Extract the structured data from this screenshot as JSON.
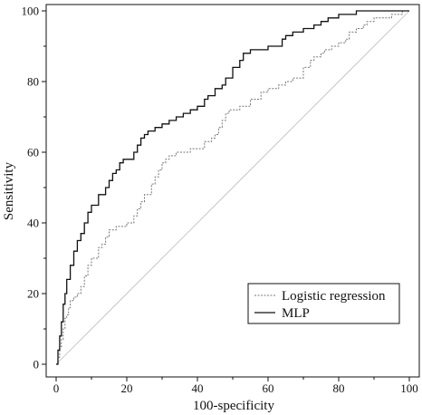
{
  "chart_data": {
    "type": "line",
    "title": "",
    "xlabel": "100-specificity",
    "ylabel": "Sensitivity",
    "xlim": [
      0,
      100
    ],
    "ylim": [
      0,
      100
    ],
    "xticks": [
      "0",
      "20",
      "40",
      "60",
      "80",
      "100"
    ],
    "yticks": [
      "0",
      "20",
      "40",
      "60",
      "80",
      "100"
    ],
    "grid": false,
    "legend_position": "bottom-right",
    "series": [
      {
        "name": "Logistic regression",
        "style": "dashed",
        "color": "#777777",
        "x": [
          0,
          0.5,
          1,
          1.5,
          2,
          2.5,
          3,
          3.5,
          4,
          5,
          6,
          7,
          8,
          9,
          10,
          12,
          13,
          14,
          15,
          17,
          18,
          20,
          22,
          23,
          24,
          25,
          27,
          28,
          29,
          30,
          31,
          32,
          33,
          34,
          35,
          38,
          40,
          42,
          44,
          45,
          46,
          47,
          48,
          49,
          50,
          52,
          53,
          55,
          58,
          60,
          62,
          63,
          65,
          67,
          70,
          72,
          73,
          75,
          76,
          78,
          80,
          82,
          83,
          85,
          87,
          88,
          90,
          92,
          95,
          98,
          100
        ],
        "y": [
          0,
          2,
          5,
          7,
          10,
          13,
          14,
          16,
          18,
          19,
          20,
          22,
          25,
          28,
          30,
          33,
          34,
          36,
          38,
          39,
          39,
          40,
          42,
          44,
          46,
          48,
          51,
          53,
          55,
          57,
          58,
          59,
          59,
          60,
          60,
          61,
          61,
          63,
          64,
          65,
          67,
          69,
          71,
          72,
          72,
          73,
          73,
          75,
          77,
          78,
          78,
          79,
          80,
          81,
          84,
          86,
          87,
          88,
          89,
          90,
          91,
          92,
          94,
          95,
          96,
          97,
          98,
          98,
          99,
          100,
          100
        ]
      },
      {
        "name": "MLP",
        "style": "solid",
        "color": "#111111",
        "x": [
          0,
          0.5,
          1,
          1.5,
          2,
          2.5,
          3,
          4,
          5,
          6,
          7,
          8,
          9,
          10,
          12,
          14,
          15,
          16,
          17,
          18,
          19,
          20,
          22,
          23,
          24,
          25,
          26,
          28,
          30,
          32,
          34,
          36,
          38,
          40,
          42,
          43,
          45,
          47,
          48,
          50,
          52,
          53,
          55,
          57,
          60,
          62,
          64,
          65,
          67,
          70,
          72,
          73,
          75,
          77,
          80,
          82,
          85,
          87,
          90,
          92,
          95,
          100
        ],
        "y": [
          0,
          4,
          8,
          12,
          17,
          20,
          24,
          28,
          32,
          35,
          37,
          40,
          43,
          45,
          48,
          50,
          52,
          54,
          55,
          57,
          58,
          58,
          60,
          62,
          64,
          65,
          66,
          67,
          68,
          69,
          70,
          71,
          72,
          73,
          75,
          76,
          78,
          79,
          81,
          84,
          86,
          88,
          89,
          89,
          90,
          90,
          92,
          93,
          94,
          95,
          95,
          96,
          97,
          98,
          99,
          99,
          100,
          100,
          100,
          100,
          100,
          100
        ]
      },
      {
        "name": "",
        "style": "reference",
        "color": "#bbbbbb",
        "x": [
          0,
          100
        ],
        "y": [
          0,
          100
        ]
      }
    ]
  }
}
